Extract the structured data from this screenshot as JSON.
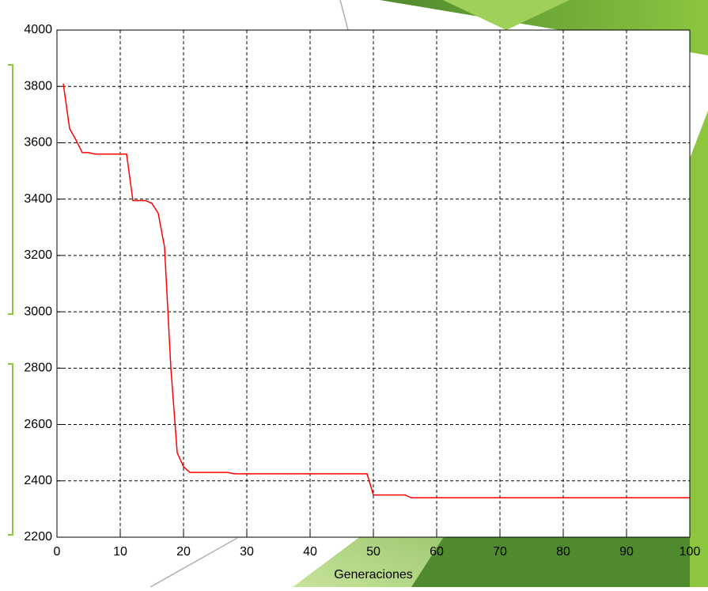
{
  "chart_data": {
    "type": "line",
    "xlabel": "Generaciones",
    "x": [
      1,
      2,
      3,
      4,
      5,
      6,
      11,
      12,
      14,
      15,
      16,
      17,
      18,
      19,
      20,
      21,
      27,
      28,
      49,
      50,
      55,
      56,
      100
    ],
    "values": [
      3810,
      3650,
      3610,
      3565,
      3565,
      3560,
      3560,
      3395,
      3395,
      3385,
      3350,
      3230,
      2800,
      2500,
      2450,
      2430,
      2430,
      2425,
      2425,
      2350,
      2350,
      2340,
      2340
    ],
    "color": "#ff0000",
    "xlim": [
      0,
      100
    ],
    "xticks": [
      0,
      10,
      20,
      30,
      40,
      50,
      60,
      70,
      80,
      90,
      100
    ],
    "ylim": [
      2200,
      4000
    ],
    "yticks": [
      2200,
      2400,
      2600,
      2800,
      3000,
      3200,
      3400,
      3600,
      3800,
      4000
    ],
    "grid": true
  }
}
